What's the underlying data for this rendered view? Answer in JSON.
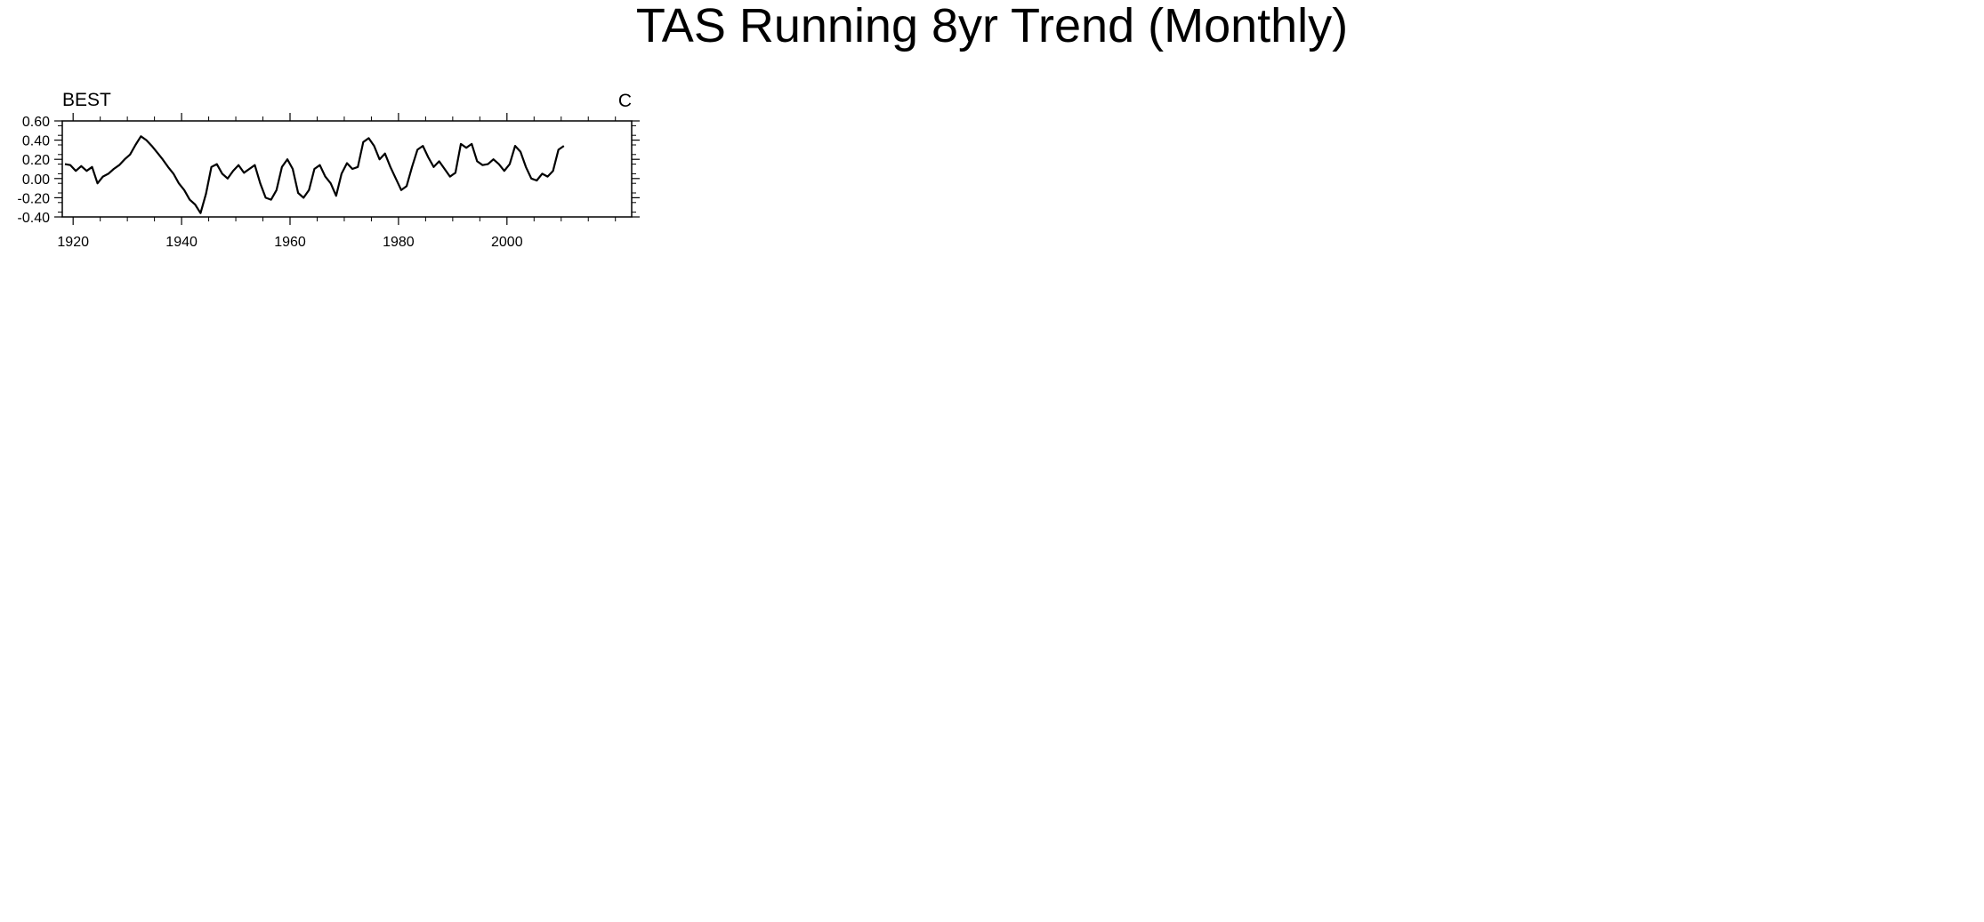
{
  "figure": {
    "title": "TAS Running 8yr Trend (Monthly)"
  },
  "chart_data": [
    {
      "panel": "BEST",
      "type": "line",
      "title": "BEST",
      "units": "C",
      "xlim": [
        1918,
        2023
      ],
      "ylim": [
        -0.4,
        0.6
      ],
      "xticks": [
        1920,
        1940,
        1960,
        1980,
        2000
      ],
      "yticks": [
        -0.4,
        -0.2,
        0.0,
        0.2,
        0.4,
        0.6
      ],
      "ytick_labels": [
        "-0.40",
        "-0.20",
        "0.00",
        "0.20",
        "0.40",
        "0.60"
      ],
      "line_color": "#000000",
      "zero_line": false,
      "series": [
        {
          "x": [
            1918.5,
            1919.5,
            1920.5,
            1921.5,
            1922.5,
            1923.5,
            1924.5,
            1925.5,
            1926.5,
            1927.5,
            1928.5,
            1929.5,
            1930.5,
            1931.5,
            1932.5,
            1933.5,
            1934.5,
            1935.5,
            1936.5,
            1937.5,
            1938.5,
            1939.5,
            1940.5,
            1941.5,
            1942.5,
            1943.5,
            1944.5,
            1945.5,
            1946.5,
            1947.5,
            1948.5,
            1949.5,
            1950.5,
            1951.5,
            1952.5,
            1953.5,
            1954.5,
            1955.5,
            1956.5,
            1957.5,
            1958.5,
            1959.5,
            1960.5,
            1961.5,
            1962.5,
            1963.5,
            1964.5,
            1965.5,
            1966.5,
            1967.5,
            1968.5,
            1969.5,
            1970.5,
            1971.5,
            1972.5,
            1973.5,
            1974.5,
            1975.5,
            1976.5,
            1977.5,
            1978.5,
            1979.5,
            1980.5,
            1981.5,
            1982.5,
            1983.5,
            1984.5,
            1985.5,
            1986.5,
            1987.5,
            1988.5,
            1989.5,
            1990.5,
            1991.5,
            1992.5,
            1993.5,
            1994.5,
            1995.5,
            1996.5,
            1997.5,
            1998.5,
            1999.5,
            2000.5,
            2001.5,
            2002.5,
            2003.5,
            2004.5,
            2005.5,
            2006.5,
            2007.5,
            2008.5,
            2009.5,
            2010.5
          ],
          "y": [
            0.15,
            0.14,
            0.08,
            0.13,
            0.08,
            0.12,
            -0.05,
            0.02,
            0.05,
            0.1,
            0.14,
            0.2,
            0.25,
            0.35,
            0.44,
            0.4,
            0.34,
            0.27,
            0.2,
            0.12,
            0.05,
            -0.05,
            -0.12,
            -0.22,
            -0.27,
            -0.36,
            -0.16,
            0.12,
            0.15,
            0.05,
            0.0,
            0.08,
            0.14,
            0.06,
            0.1,
            0.14,
            -0.05,
            -0.2,
            -0.22,
            -0.12,
            0.12,
            0.2,
            0.1,
            -0.15,
            -0.2,
            -0.12,
            0.1,
            0.14,
            0.02,
            -0.05,
            -0.18,
            0.05,
            0.16,
            0.1,
            0.12,
            0.38,
            0.42,
            0.34,
            0.2,
            0.26,
            0.12,
            0.0,
            -0.12,
            -0.08,
            0.12,
            0.3,
            0.34,
            0.22,
            0.12,
            0.18,
            0.1,
            0.02,
            0.06,
            0.36,
            0.32,
            0.36,
            0.18,
            0.14,
            0.15,
            0.2,
            0.15,
            0.08,
            0.15,
            0.34,
            0.28,
            0.12,
            0.0,
            -0.02,
            0.05,
            0.02,
            0.08,
            0.3,
            0.34
          ]
        }
      ]
    }
  ]
}
